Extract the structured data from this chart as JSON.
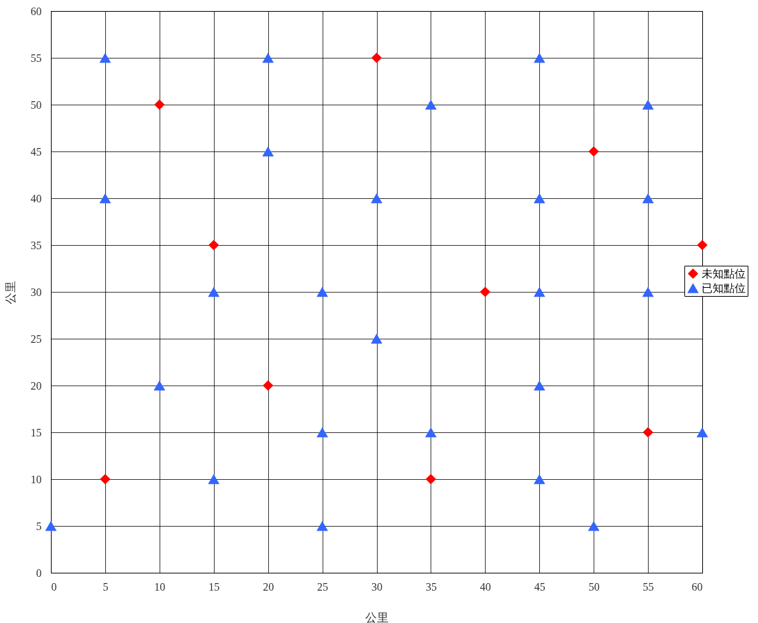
{
  "chart_data": {
    "type": "scatter",
    "xlabel": "公里",
    "ylabel": "公里",
    "xlim": [
      0,
      60
    ],
    "ylim": [
      0,
      60
    ],
    "xticks": [
      0,
      5,
      10,
      15,
      20,
      25,
      30,
      35,
      40,
      45,
      50,
      55,
      60
    ],
    "yticks": [
      0,
      5,
      10,
      15,
      20,
      25,
      30,
      35,
      40,
      45,
      50,
      55,
      60
    ],
    "grid": true,
    "legend": "right",
    "series": [
      {
        "name": "未知點位",
        "color": "#ff0000",
        "marker": "diamond",
        "x": [
          5,
          10,
          15,
          20,
          30,
          35,
          40,
          50,
          55,
          60
        ],
        "values": [
          10,
          50,
          35,
          20,
          55,
          10,
          30,
          45,
          15,
          35
        ]
      },
      {
        "name": "已知點位",
        "color": "#3366ff",
        "marker": "triangle",
        "x": [
          0,
          5,
          5,
          10,
          15,
          15,
          20,
          20,
          25,
          25,
          25,
          30,
          30,
          35,
          35,
          45,
          45,
          45,
          45,
          45,
          50,
          55,
          55,
          55,
          60
        ],
        "values": [
          5,
          55,
          40,
          20,
          30,
          10,
          55,
          45,
          30,
          15,
          5,
          40,
          25,
          50,
          15,
          55,
          40,
          30,
          20,
          10,
          5,
          50,
          40,
          30,
          15
        ]
      }
    ]
  }
}
